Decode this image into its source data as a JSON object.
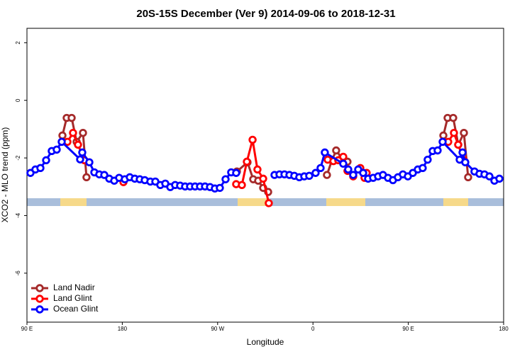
{
  "chart_data": {
    "type": "line",
    "title": "20S-15S December (Ver 9)   2014-09-06 to 2018-12-31",
    "xlabel": "Longitude",
    "ylabel": "XCO2 - MLO trend (ppm)",
    "xlim": [
      90,
      540
    ],
    "ylim": [
      -7.7,
      2.5
    ],
    "xticks": [
      {
        "value": 90,
        "label": "90 E"
      },
      180,
      {
        "value": 270,
        "label": "90 W"
      },
      {
        "value": 360,
        "label": "0"
      },
      {
        "value": 450,
        "label": "90 E"
      },
      {
        "value": 540,
        "label": "180"
      }
    ],
    "yticks": [
      2,
      0,
      -2,
      -4,
      -6
    ],
    "legend": "lower left",
    "series": [
      {
        "name": "Land Nadir",
        "color": "#a52a2a",
        "x": [
          123.5,
          127.5,
          132.2,
          136.9,
          142.9,
          146.2,
          null,
          288.2,
          298.2,
          303.6,
          308.3,
          313.0,
          317.7,
          null,
          373.2,
          377.9,
          381.9,
          387.3,
          392.6,
          null,
          483.1,
          487.1,
          492.4,
          497.2,
          502.5,
          506.5
        ],
        "values": [
          -1.22,
          -0.61,
          -0.61,
          -1.44,
          -1.13,
          -2.67,
          null,
          -2.47,
          -2.15,
          -2.74,
          -2.79,
          -3.04,
          -3.18,
          null,
          -2.59,
          -2.08,
          -1.74,
          -2.01,
          -2.13,
          null,
          -1.22,
          -0.61,
          -0.61,
          -1.54,
          -1.13,
          -2.67
        ]
      },
      {
        "name": "Land Glint",
        "color": "#ff0000",
        "x": [
          128.2,
          133.5,
          138.2,
          144.2,
          null,
          181.1,
          null,
          287.5,
          292.9,
          297.6,
          303.0,
          307.6,
          313.0,
          318.3,
          null,
          373.9,
          379.3,
          383.9,
          388.6,
          392.6,
          398.0,
          404.7,
          408.7,
          410.7,
          null,
          487.7,
          493.1,
          497.1,
          502.5
        ],
        "values": [
          -1.44,
          -1.13,
          -1.54,
          -2.08,
          null,
          -2.84,
          null,
          -2.91,
          -2.94,
          -2.13,
          -1.37,
          -2.4,
          -2.72,
          -3.57,
          null,
          -2.06,
          -2.11,
          -2.08,
          -1.96,
          -2.45,
          -2.64,
          -2.35,
          -2.69,
          -2.52,
          null,
          -1.44,
          -1.13,
          -1.54,
          -2.08
        ]
      },
      {
        "name": "Ocean Glint",
        "color": "#0000ff",
        "x": [
          93.3,
          98.0,
          102.7,
          108.1,
          113.4,
          118.1,
          122.8,
          140.2,
          142.2,
          148.9,
          153.6,
          158.3,
          163.0,
          167.7,
          172.4,
          177.0,
          182.4,
          187.1,
          191.8,
          196.5,
          201.2,
          206.5,
          211.2,
          215.9,
          220.6,
          225.3,
          229.9,
          234.6,
          239.3,
          244.0,
          248.7,
          253.4,
          258.1,
          262.8,
          267.4,
          272.1,
          277.5,
          282.8,
          287.5,
          null,
          323.7,
          328.4,
          333.1,
          337.8,
          342.4,
          347.1,
          351.8,
          356.5,
          362.5,
          367.2,
          371.2,
          388.6,
          393.3,
          398.0,
          402.7,
          407.4,
          412.1,
          416.8,
          421.5,
          426.1,
          430.8,
          435.5,
          440.2,
          444.9,
          449.6,
          454.3,
          459.0,
          463.6,
          468.3,
          473.0,
          477.7,
          482.4,
          498.5,
          501.2,
          503.8,
          512.5,
          517.2,
          521.9,
          526.6,
          531.3,
          536.0
        ],
        "values": [
          -2.52,
          -2.4,
          -2.35,
          -2.08,
          -1.76,
          -1.71,
          -1.44,
          -2.05,
          -1.81,
          -2.15,
          -2.5,
          -2.57,
          -2.59,
          -2.72,
          -2.79,
          -2.69,
          -2.74,
          -2.67,
          -2.72,
          -2.74,
          -2.77,
          -2.82,
          -2.82,
          -2.94,
          -2.89,
          -3.01,
          -2.94,
          -2.96,
          -2.99,
          -2.99,
          -2.99,
          -2.99,
          -2.99,
          -3.01,
          -3.06,
          -3.04,
          -2.74,
          -2.5,
          -2.52,
          null,
          -2.59,
          -2.57,
          -2.57,
          -2.59,
          -2.62,
          -2.67,
          -2.64,
          -2.62,
          -2.52,
          -2.35,
          -1.81,
          -2.2,
          -2.4,
          -2.59,
          -2.4,
          -2.52,
          -2.72,
          -2.69,
          -2.64,
          -2.59,
          -2.69,
          -2.77,
          -2.67,
          -2.57,
          -2.64,
          -2.52,
          -2.4,
          -2.35,
          -2.06,
          -1.76,
          -1.74,
          -1.44,
          -2.06,
          -1.81,
          -2.15,
          -2.47,
          -2.55,
          -2.57,
          -2.64,
          -2.79,
          -2.72
        ]
      }
    ]
  }
}
